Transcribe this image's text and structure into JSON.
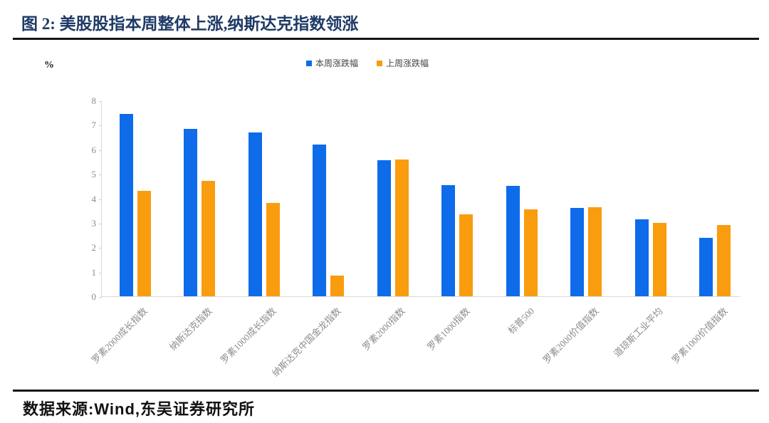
{
  "header": {
    "title": "图 2: 美股股指本周整体上涨,纳斯达克指数领涨",
    "title_color": "#1e3a66"
  },
  "footer": {
    "source": "数据来源:Wind,东吴证券研究所"
  },
  "legend": {
    "items": [
      "本周涨跌幅",
      "上周涨跌幅"
    ]
  },
  "chart_data": {
    "type": "bar",
    "title": "图 2: 美股股指本周整体上涨,纳斯达克指数领涨",
    "xlabel": "",
    "ylabel": "%",
    "ylim": [
      0,
      8
    ],
    "ytick_step": 1,
    "grid": false,
    "legend_position": "top-center",
    "categories": [
      "罗素2000成长指数",
      "纳斯达克指数",
      "罗素1000成长指数",
      "纳斯达克中国金龙指数",
      "罗素2000指数",
      "罗素1000指数",
      "标普500",
      "罗素2000价值指数",
      "道琼斯工业平均",
      "罗素1000价值指数"
    ],
    "series": [
      {
        "name": "本周涨跌幅",
        "color": "#0e6bea",
        "values": [
          7.45,
          6.85,
          6.7,
          6.2,
          5.55,
          4.55,
          4.5,
          3.6,
          3.15,
          2.4
        ]
      },
      {
        "name": "上周涨跌幅",
        "color": "#f99c0e",
        "values": [
          4.3,
          4.7,
          3.8,
          0.85,
          5.58,
          3.35,
          3.55,
          3.65,
          3.0,
          2.9
        ]
      }
    ]
  }
}
